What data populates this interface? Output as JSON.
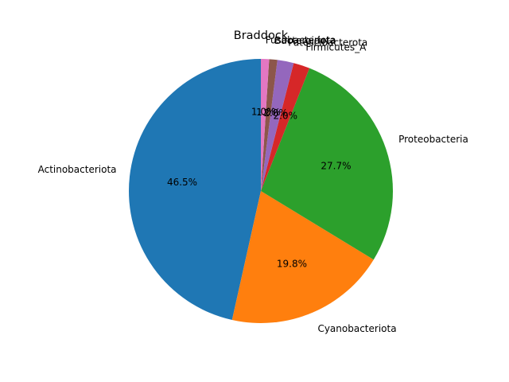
{
  "chart_data": {
    "type": "pie",
    "title": "Braddock",
    "labels": [
      "Actinobacteriota",
      "Cyanobacteriota",
      "Proteobacteria",
      "Firmicutes_A",
      "Patescibacterota",
      "Bacteroidota",
      "Fusobacteriota"
    ],
    "values": [
      46.5,
      19.8,
      27.7,
      2.0,
      2.0,
      1.0,
      1.0
    ],
    "value_labels": [
      "46.5%",
      "19.8%",
      "27.7%",
      "2.0%",
      "2.0%",
      "1.0%",
      "1.0%"
    ],
    "colors": [
      "#1f77b4",
      "#ff7f0e",
      "#2ca02c",
      "#d62728",
      "#9467bd",
      "#8c564b",
      "#e377c2"
    ],
    "start_angle_deg": 90,
    "direction": "counterclockwise"
  }
}
